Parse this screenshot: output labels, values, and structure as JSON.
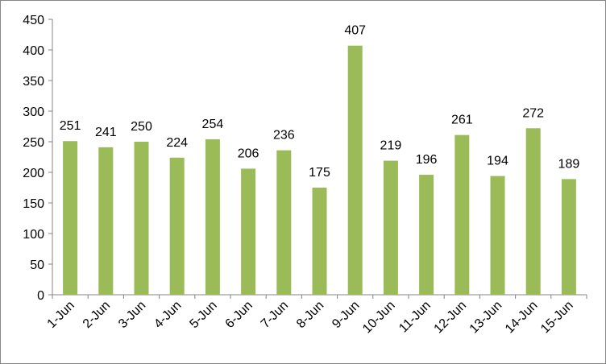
{
  "chart_data": {
    "type": "bar",
    "categories": [
      "1-Jun",
      "2-Jun",
      "3-Jun",
      "4-Jun",
      "5-Jun",
      "6-Jun",
      "7-Jun",
      "8-Jun",
      "9-Jun",
      "10-Jun",
      "11-Jun",
      "12-Jun",
      "13-Jun",
      "14-Jun",
      "15-Jun"
    ],
    "values": [
      251,
      241,
      250,
      224,
      254,
      206,
      236,
      175,
      407,
      219,
      196,
      261,
      194,
      272,
      189
    ],
    "color": "#9bbb59",
    "ylim": [
      0,
      450
    ],
    "yticks": [
      0,
      50,
      100,
      150,
      200,
      250,
      300,
      350,
      400,
      450
    ],
    "grid": false
  }
}
